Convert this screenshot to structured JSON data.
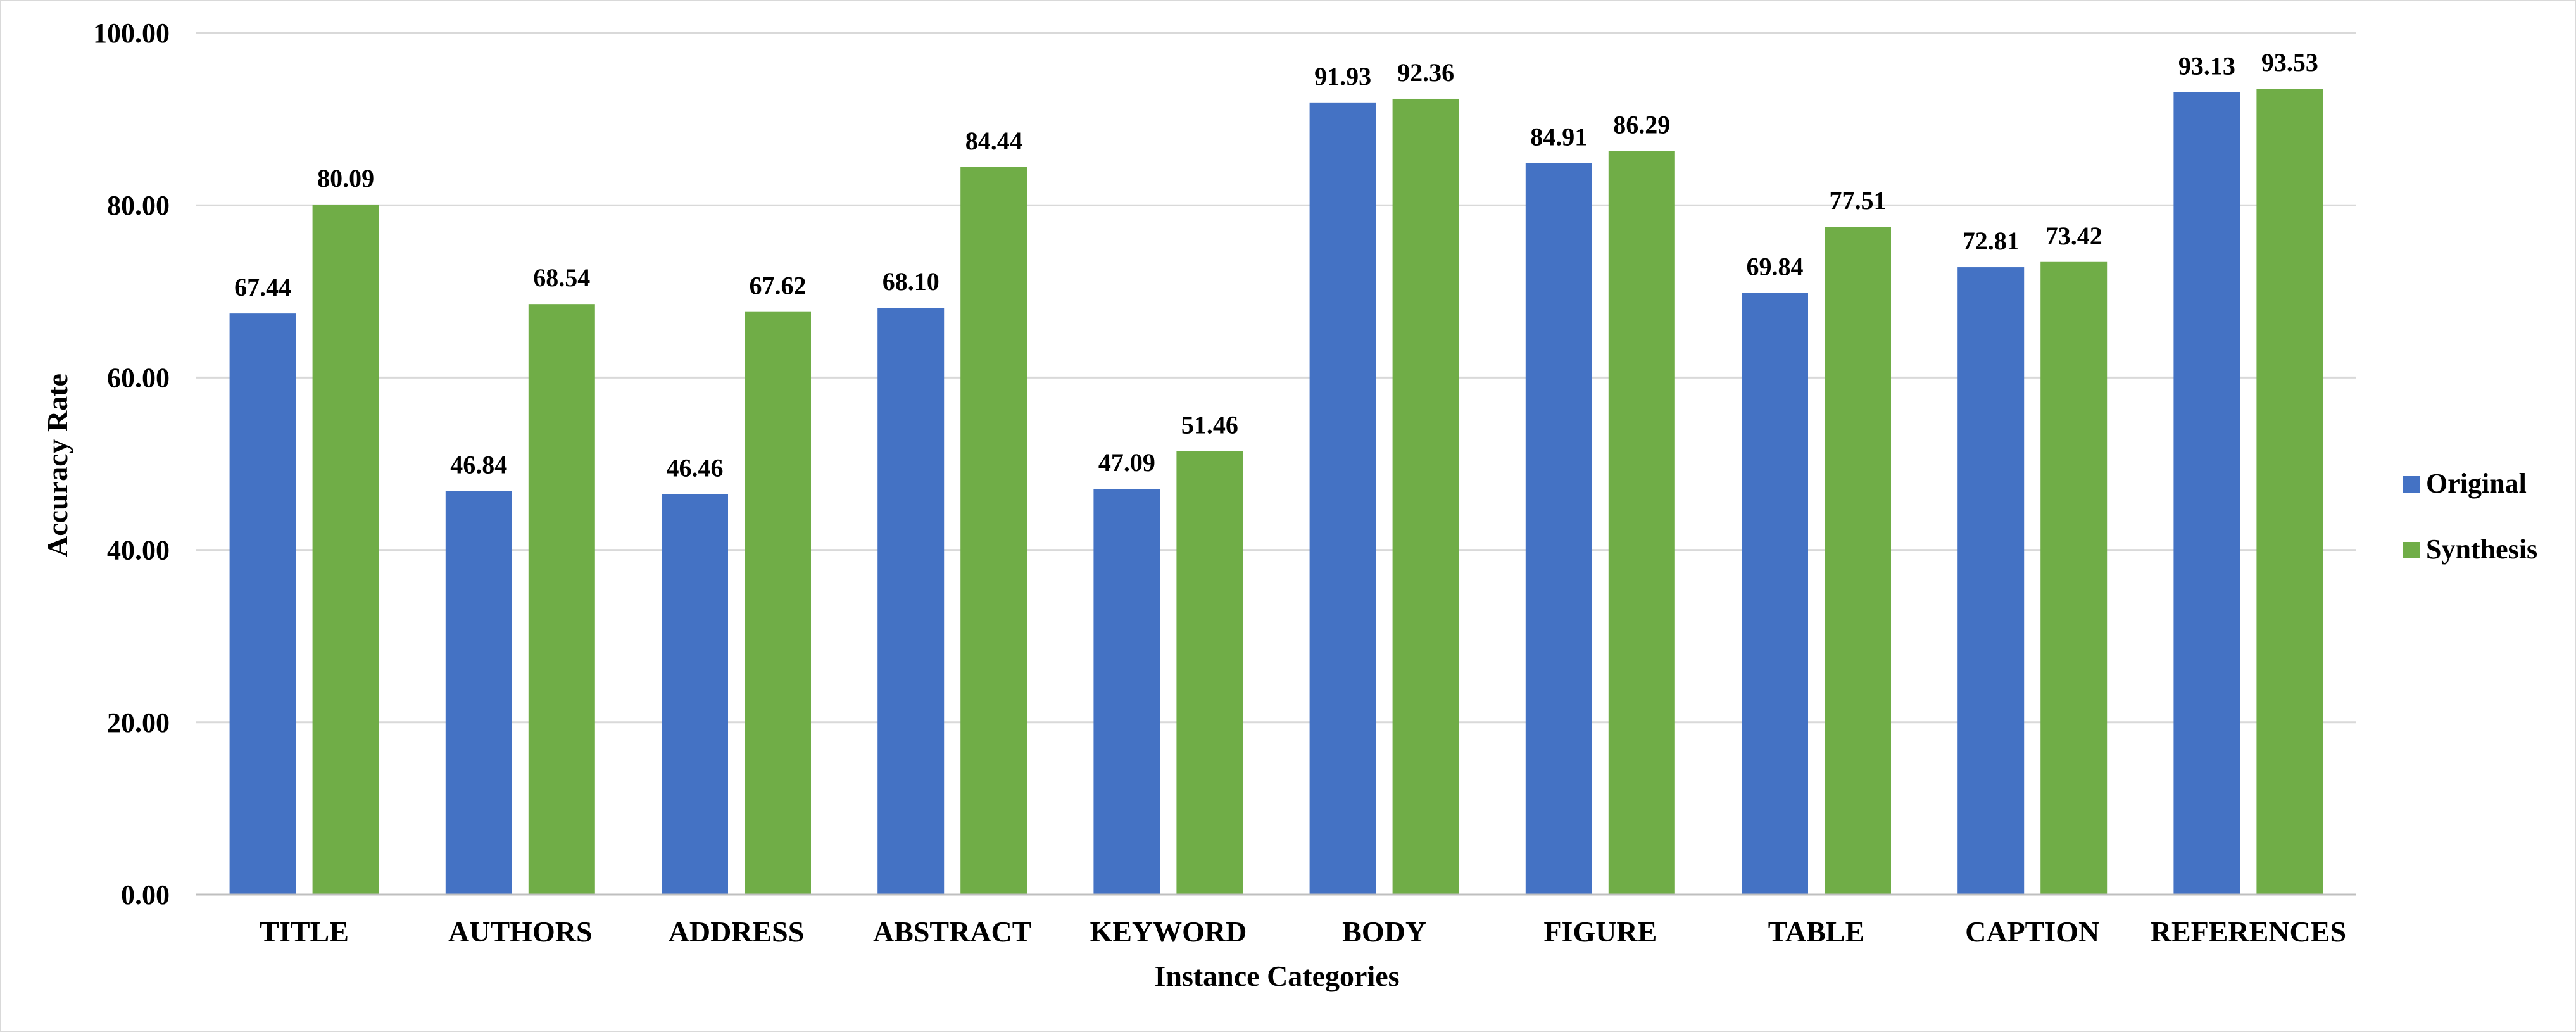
{
  "chart_data": {
    "type": "bar",
    "title": "",
    "xlabel": "Instance Categories",
    "ylabel": "Accuracy Rate",
    "ylim": [
      0,
      100
    ],
    "yticks": [
      "0.00",
      "20.00",
      "40.00",
      "60.00",
      "80.00",
      "100.00"
    ],
    "grid": true,
    "legend_position": "right",
    "categories": [
      "TITLE",
      "AUTHORS",
      "ADDRESS",
      "ABSTRACT",
      "KEYWORD",
      "BODY",
      "FIGURE",
      "TABLE",
      "CAPTION",
      "REFERENCES"
    ],
    "series": [
      {
        "name": "Original",
        "color": "#4472C4",
        "values": [
          67.44,
          46.84,
          46.46,
          68.1,
          47.09,
          91.93,
          84.91,
          69.84,
          72.81,
          93.13
        ],
        "labels": [
          "67.44",
          "46.84",
          "46.46",
          "68.10",
          "47.09",
          "91.93",
          "84.91",
          "69.84",
          "72.81",
          "93.13"
        ]
      },
      {
        "name": "Synthesis",
        "color": "#70AD47",
        "values": [
          80.09,
          68.54,
          67.62,
          84.44,
          51.46,
          92.36,
          86.29,
          77.51,
          73.42,
          93.53
        ],
        "labels": [
          "80.09",
          "68.54",
          "67.62",
          "84.44",
          "51.46",
          "92.36",
          "86.29",
          "77.51",
          "73.42",
          "93.53"
        ]
      }
    ]
  }
}
